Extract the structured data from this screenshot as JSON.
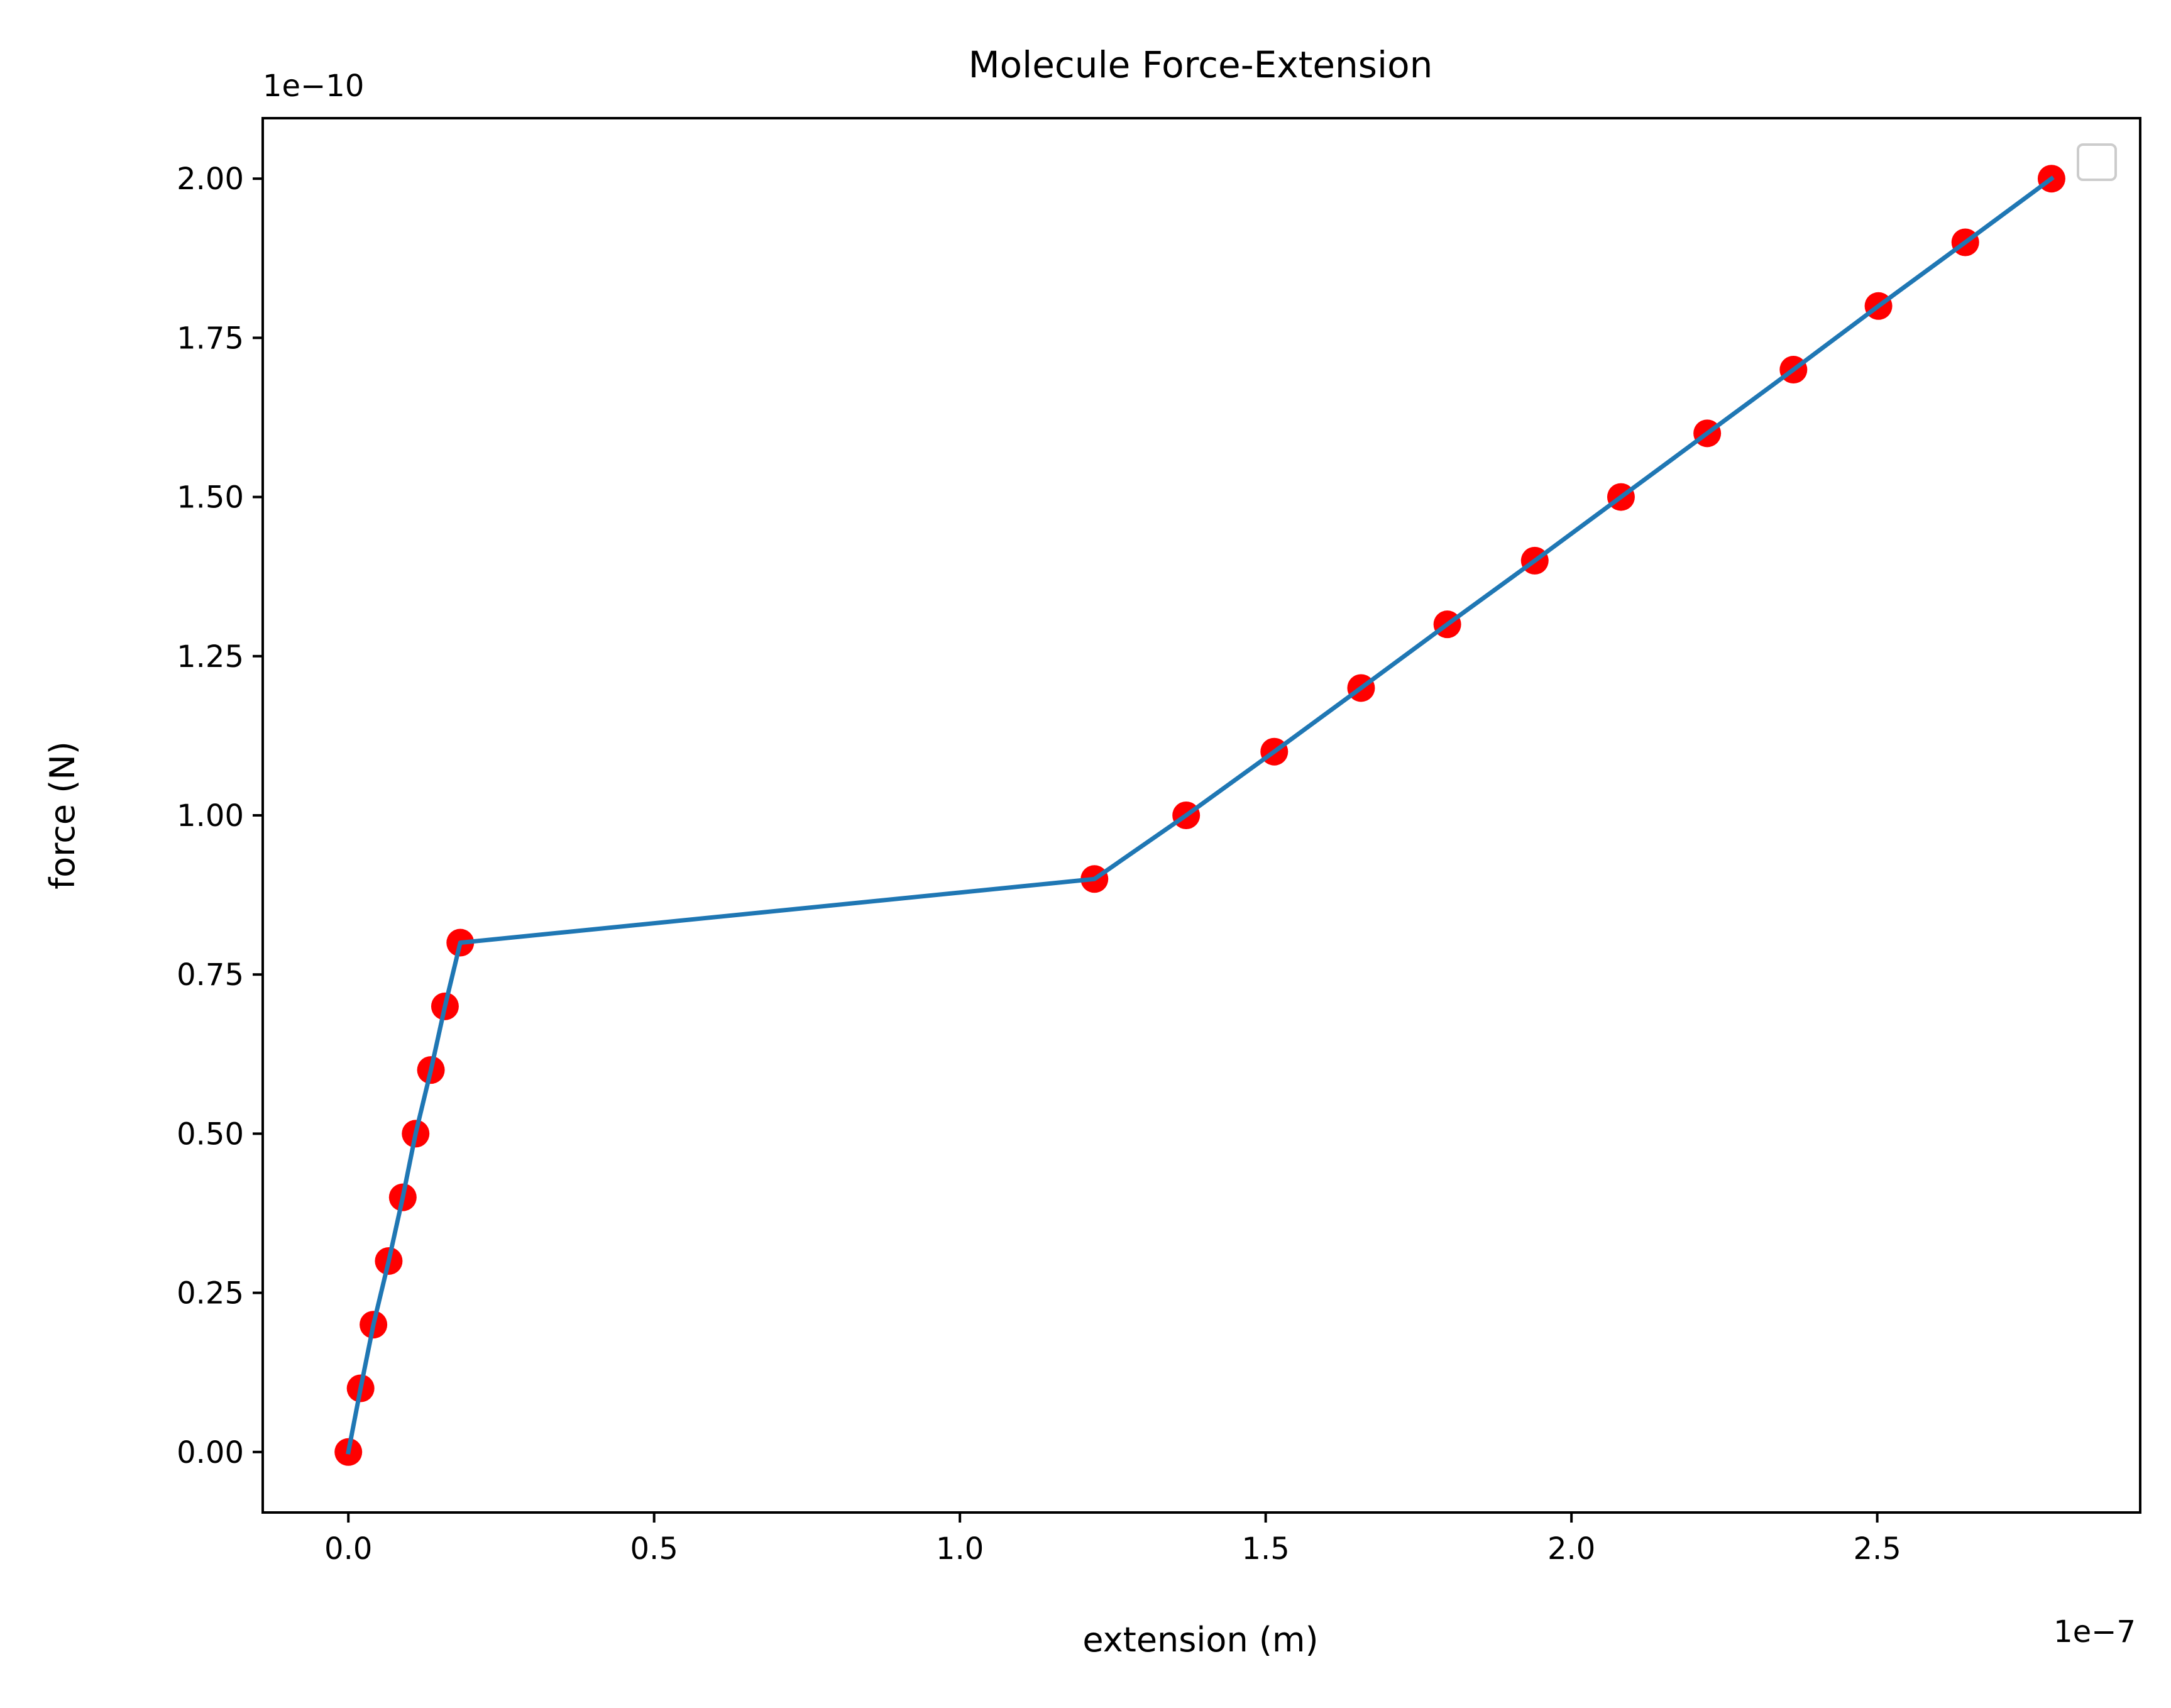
{
  "chart_data": {
    "type": "scatter",
    "title": "Molecule Force-Extension",
    "xlabel": "extension (m)",
    "ylabel": "force (N)",
    "x_offset_label": "1e−7",
    "y_offset_label": "1e−10",
    "xlim": [
      -0.14,
      2.93
    ],
    "ylim": [
      -0.095,
      2.095
    ],
    "x_ticks": [
      0.0,
      0.5,
      1.0,
      1.5,
      2.0,
      2.5
    ],
    "x_tick_labels": [
      "0.0",
      "0.5",
      "1.0",
      "1.5",
      "2.0",
      "2.5"
    ],
    "y_ticks": [
      0.0,
      0.25,
      0.5,
      0.75,
      1.0,
      1.25,
      1.5,
      1.75,
      2.0
    ],
    "y_tick_labels": [
      "0.00",
      "0.25",
      "0.50",
      "0.75",
      "1.00",
      "1.25",
      "1.50",
      "1.75",
      "2.00"
    ],
    "grid": false,
    "legend": "upper right, empty",
    "colors": {
      "points": "#ff0000",
      "line": "#1f77b4",
      "axes": "#000000"
    },
    "series": [
      {
        "style": "markers and line",
        "x": [
          0.0,
          0.02,
          0.041,
          0.066,
          0.089,
          0.11,
          0.135,
          0.158,
          0.183,
          1.22,
          1.37,
          1.514,
          1.656,
          1.797,
          1.94,
          2.081,
          2.222,
          2.363,
          2.502,
          2.644,
          2.785
        ],
        "y": [
          0.0,
          0.1,
          0.2,
          0.3,
          0.4,
          0.5,
          0.6,
          0.7,
          0.8,
          0.9,
          1.0,
          1.1,
          1.2,
          1.3,
          1.4,
          1.5,
          1.6,
          1.7,
          1.8,
          1.9,
          2.0
        ]
      }
    ]
  }
}
